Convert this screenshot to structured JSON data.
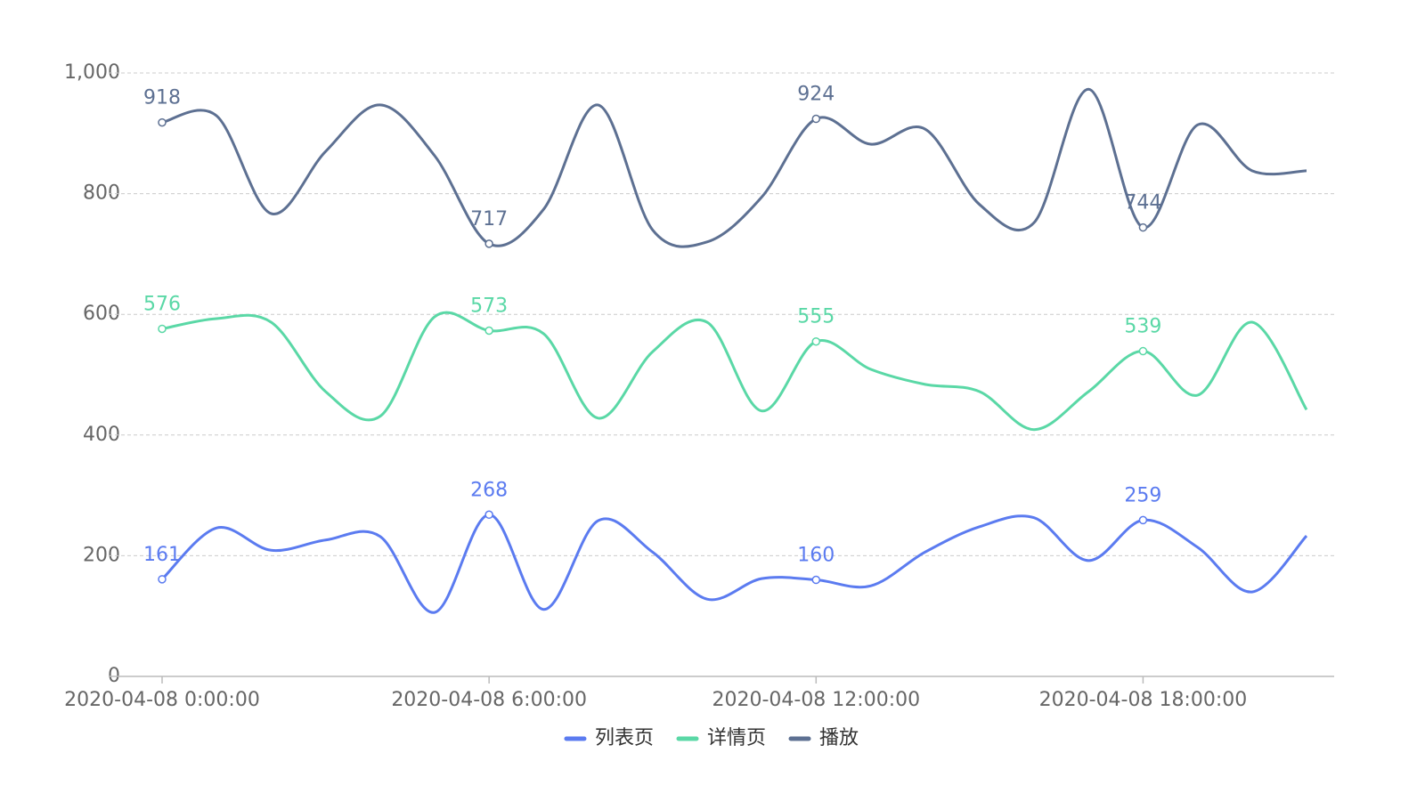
{
  "chart_data": {
    "type": "line",
    "categories": [
      "2020-04-08 0:00:00",
      null,
      null,
      null,
      null,
      null,
      "2020-04-08 6:00:00",
      null,
      null,
      null,
      null,
      null,
      "2020-04-08 12:00:00",
      null,
      null,
      null,
      null,
      null,
      "2020-04-08 18:00:00",
      null,
      null,
      null
    ],
    "series": [
      {
        "name": "列表页",
        "color": "#5b7bf0",
        "values": [
          161,
          246,
          209,
          226,
          232,
          106,
          268,
          111,
          258,
          206,
          128,
          162,
          160,
          150,
          206,
          248,
          263,
          192,
          259,
          214,
          140,
          233
        ]
      },
      {
        "name": "详情页",
        "color": "#5ad8a6",
        "values": [
          576,
          593,
          587,
          472,
          431,
          596,
          573,
          568,
          428,
          538,
          587,
          440,
          555,
          509,
          484,
          472,
          409,
          472,
          539,
          466,
          587,
          442
        ]
      },
      {
        "name": "播放",
        "color": "#5d7092",
        "values": [
          918,
          929,
          767,
          870,
          947,
          863,
          717,
          774,
          947,
          740,
          720,
          794,
          924,
          882,
          907,
          782,
          752,
          973,
          744,
          914,
          838,
          838
        ]
      }
    ],
    "ylim": [
      0,
      1000
    ],
    "yticks": [
      0,
      200,
      400,
      600,
      800,
      {
        "value": 1000,
        "label": "1,000"
      }
    ],
    "grid": true,
    "legend": "bottom"
  }
}
